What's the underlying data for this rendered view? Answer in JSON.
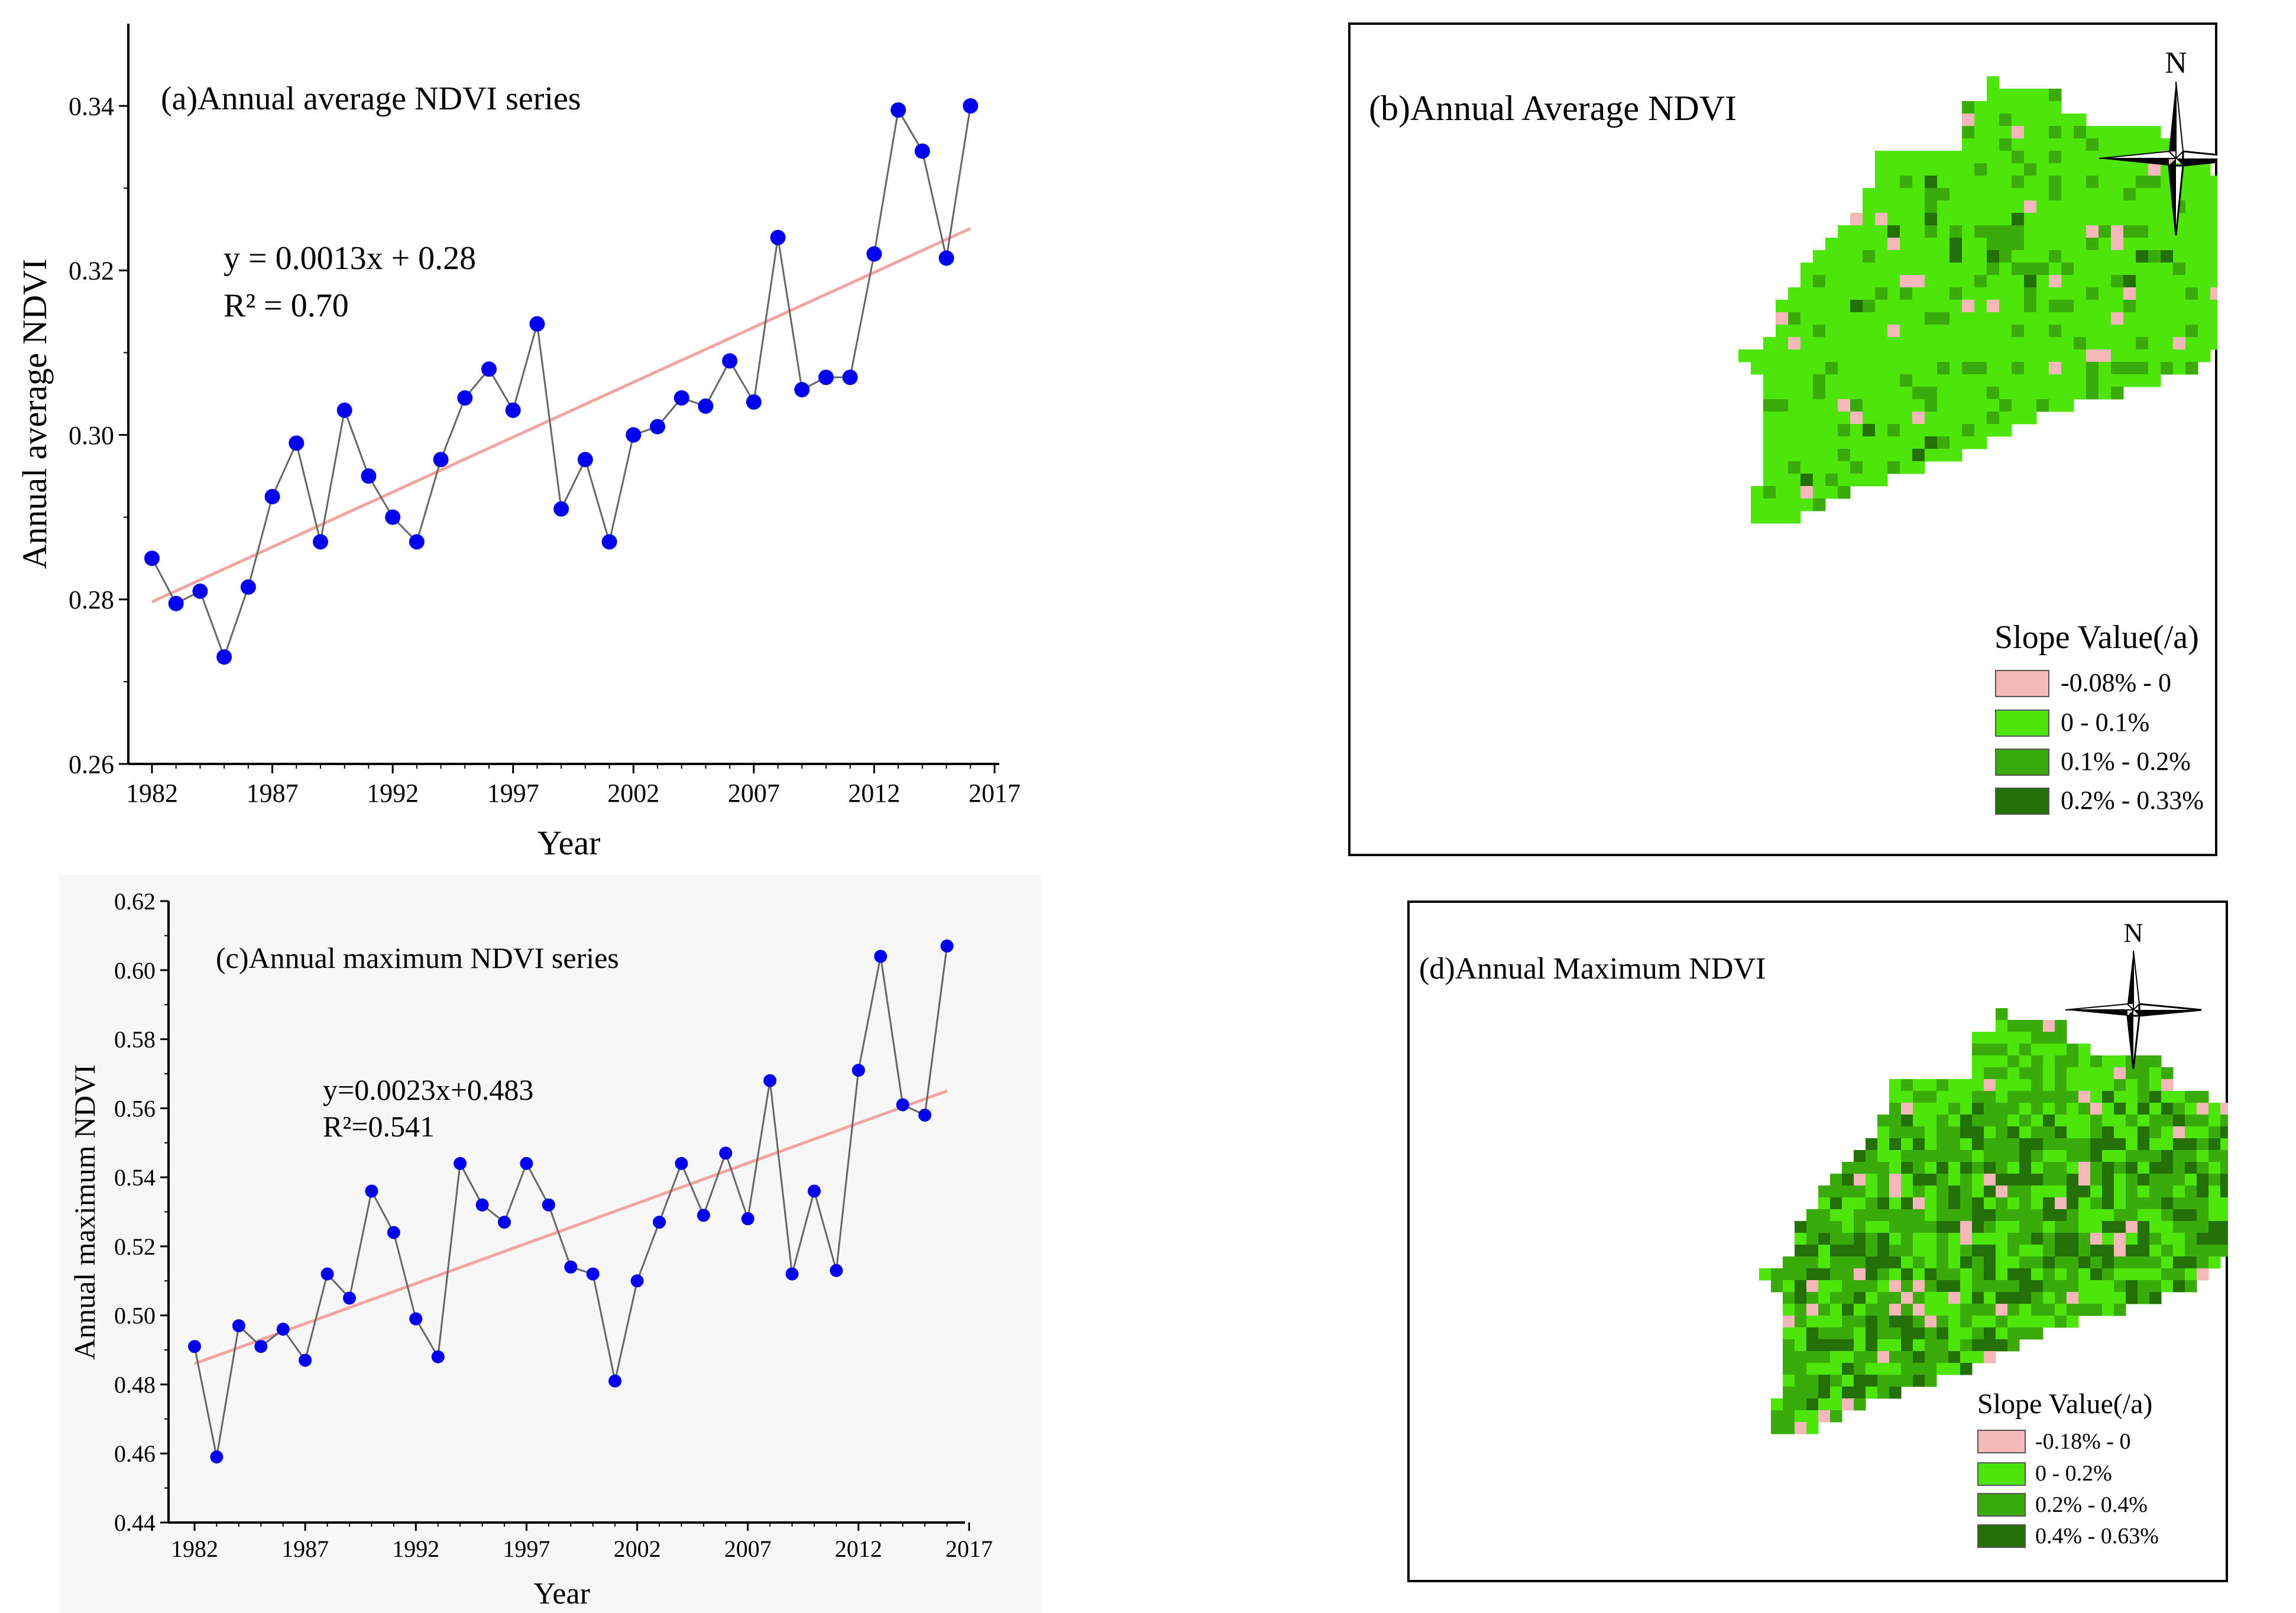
{
  "chart_data": [
    {
      "type": "scatter",
      "panel": "a",
      "title": "(a)Annual average NDVI series",
      "xlabel": "Year",
      "ylabel": "Annual average NDVI",
      "xlim": [
        1981,
        2017
      ],
      "ylim": [
        0.26,
        0.35
      ],
      "xticks": [
        1982,
        1987,
        1992,
        1997,
        2002,
        2007,
        2012,
        2017
      ],
      "yticks": [
        0.26,
        0.28,
        0.3,
        0.32,
        0.34
      ],
      "ytick_labels": [
        "0.26",
        "0.28",
        "0.30",
        "0.32",
        "0.34"
      ],
      "x": [
        1982,
        1983,
        1984,
        1985,
        1986,
        1987,
        1988,
        1989,
        1990,
        1991,
        1992,
        1993,
        1994,
        1995,
        1996,
        1997,
        1998,
        1999,
        2000,
        2001,
        2002,
        2003,
        2004,
        2005,
        2006,
        2007,
        2008,
        2009,
        2010,
        2011,
        2012,
        2013,
        2014,
        2015,
        2016
      ],
      "y": [
        0.285,
        0.2795,
        0.281,
        0.273,
        0.2815,
        0.2925,
        0.299,
        0.287,
        0.303,
        0.295,
        0.29,
        0.287,
        0.297,
        0.3045,
        0.308,
        0.303,
        0.3135,
        0.291,
        0.297,
        0.287,
        0.3,
        0.301,
        0.3045,
        0.3035,
        0.309,
        0.304,
        0.324,
        0.3055,
        0.307,
        0.307,
        0.322,
        0.3395,
        0.3345,
        0.3215,
        0.34
      ],
      "trend": {
        "x": [
          1982,
          2016
        ],
        "y": [
          0.2797,
          0.3251
        ],
        "equation": "y = 0.0013x + 0.28",
        "r2": "R² = 0.70"
      },
      "colors": {
        "points": "#0000ee",
        "line": "#666666",
        "trend": "#f4a3a3"
      }
    },
    {
      "type": "scatter",
      "panel": "c",
      "title": "(c)Annual maximum NDVI series",
      "xlabel": "Year",
      "ylabel": "Annual maximum NDVI",
      "xlim": [
        1981,
        2017
      ],
      "ylim": [
        0.44,
        0.62
      ],
      "xticks": [
        1982,
        1987,
        1992,
        1997,
        2002,
        2007,
        2012,
        2017
      ],
      "yticks": [
        0.44,
        0.46,
        0.48,
        0.5,
        0.52,
        0.54,
        0.56,
        0.58,
        0.6,
        0.62
      ],
      "ytick_labels": [
        "0.44",
        "0.46",
        "0.48",
        "0.50",
        "0.52",
        "0.54",
        "0.56",
        "0.58",
        "0.60",
        "0.62"
      ],
      "x": [
        1982,
        1983,
        1984,
        1985,
        1986,
        1987,
        1988,
        1989,
        1990,
        1991,
        1992,
        1993,
        1994,
        1995,
        1996,
        1997,
        1998,
        1999,
        2000,
        2001,
        2002,
        2003,
        2004,
        2005,
        2006,
        2007,
        2008,
        2009,
        2010,
        2011,
        2012,
        2013,
        2014,
        2015,
        2016
      ],
      "y": [
        0.491,
        0.459,
        0.497,
        0.491,
        0.496,
        0.487,
        0.512,
        0.505,
        0.536,
        0.524,
        0.499,
        0.488,
        0.544,
        0.532,
        0.527,
        0.544,
        0.532,
        0.514,
        0.512,
        0.481,
        0.51,
        0.527,
        0.544,
        0.529,
        0.547,
        0.528,
        0.568,
        0.512,
        0.536,
        0.513,
        0.571,
        0.604,
        0.561,
        0.558,
        0.607
      ],
      "trend": {
        "x": [
          1982,
          2016
        ],
        "y": [
          0.486,
          0.565
        ],
        "equation": "y=0.0023x+0.483",
        "r2": "R²=0.541"
      },
      "colors": {
        "points": "#0000ee",
        "line": "#666666",
        "trend": "#f4a3a3"
      }
    }
  ],
  "maps": [
    {
      "panel": "b",
      "title": "(b)Annual Average NDVI",
      "north_label": "N",
      "legend_title": "Slope Value(/a)",
      "legend_items": [
        {
          "label": "-0.08% - 0",
          "color": "#f4b8b8"
        },
        {
          "label": "0 - 0.1%",
          "color": "#4ee60a"
        },
        {
          "label": "0.1% - 0.2%",
          "color": "#3aab09"
        },
        {
          "label": "0.2% - 0.33%",
          "color": "#237006"
        }
      ]
    },
    {
      "panel": "d",
      "title": "(d)Annual Maximum NDVI",
      "north_label": "N",
      "legend_title": "Slope Value(/a)",
      "legend_items": [
        {
          "label": "-0.18% - 0",
          "color": "#f4b8b8"
        },
        {
          "label": "0 - 0.2%",
          "color": "#4ee60a"
        },
        {
          "label": "0.2% - 0.4%",
          "color": "#3aab09"
        },
        {
          "label": "0.4% - 0.63%",
          "color": "#237006"
        }
      ]
    }
  ]
}
